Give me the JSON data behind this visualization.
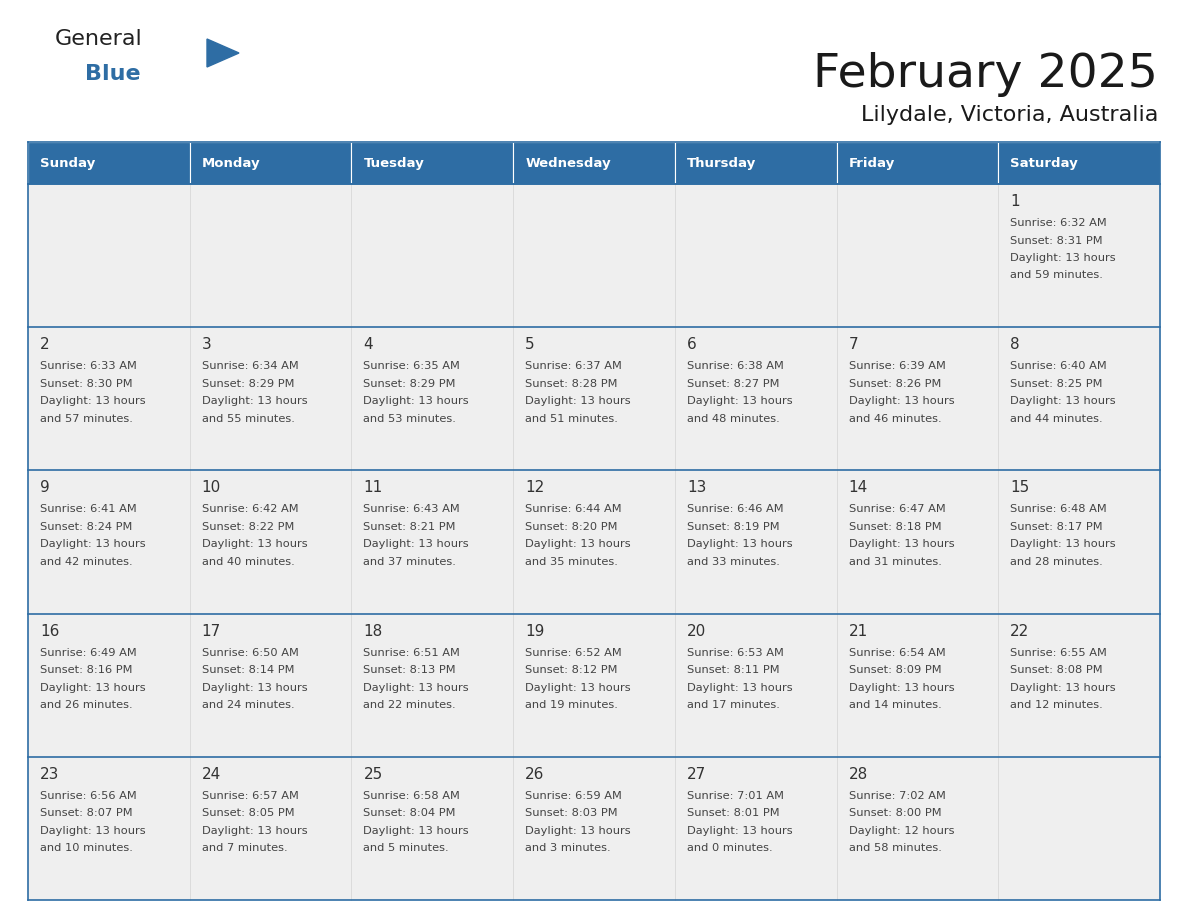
{
  "title": "February 2025",
  "subtitle": "Lilydale, Victoria, Australia",
  "days_of_week": [
    "Sunday",
    "Monday",
    "Tuesday",
    "Wednesday",
    "Thursday",
    "Friday",
    "Saturday"
  ],
  "header_bg": "#2e6da4",
  "header_text_color": "#ffffff",
  "cell_bg": "#efefef",
  "border_color": "#2e6da4",
  "day_num_color": "#333333",
  "text_color": "#444444",
  "title_color": "#1a1a1a",
  "calendar_data": [
    [
      null,
      null,
      null,
      null,
      null,
      null,
      {
        "day": 1,
        "sunrise": "6:32 AM",
        "sunset": "8:31 PM",
        "daylight": "13 hours and 59 minutes."
      }
    ],
    [
      {
        "day": 2,
        "sunrise": "6:33 AM",
        "sunset": "8:30 PM",
        "daylight": "13 hours and 57 minutes."
      },
      {
        "day": 3,
        "sunrise": "6:34 AM",
        "sunset": "8:29 PM",
        "daylight": "13 hours and 55 minutes."
      },
      {
        "day": 4,
        "sunrise": "6:35 AM",
        "sunset": "8:29 PM",
        "daylight": "13 hours and 53 minutes."
      },
      {
        "day": 5,
        "sunrise": "6:37 AM",
        "sunset": "8:28 PM",
        "daylight": "13 hours and 51 minutes."
      },
      {
        "day": 6,
        "sunrise": "6:38 AM",
        "sunset": "8:27 PM",
        "daylight": "13 hours and 48 minutes."
      },
      {
        "day": 7,
        "sunrise": "6:39 AM",
        "sunset": "8:26 PM",
        "daylight": "13 hours and 46 minutes."
      },
      {
        "day": 8,
        "sunrise": "6:40 AM",
        "sunset": "8:25 PM",
        "daylight": "13 hours and 44 minutes."
      }
    ],
    [
      {
        "day": 9,
        "sunrise": "6:41 AM",
        "sunset": "8:24 PM",
        "daylight": "13 hours and 42 minutes."
      },
      {
        "day": 10,
        "sunrise": "6:42 AM",
        "sunset": "8:22 PM",
        "daylight": "13 hours and 40 minutes."
      },
      {
        "day": 11,
        "sunrise": "6:43 AM",
        "sunset": "8:21 PM",
        "daylight": "13 hours and 37 minutes."
      },
      {
        "day": 12,
        "sunrise": "6:44 AM",
        "sunset": "8:20 PM",
        "daylight": "13 hours and 35 minutes."
      },
      {
        "day": 13,
        "sunrise": "6:46 AM",
        "sunset": "8:19 PM",
        "daylight": "13 hours and 33 minutes."
      },
      {
        "day": 14,
        "sunrise": "6:47 AM",
        "sunset": "8:18 PM",
        "daylight": "13 hours and 31 minutes."
      },
      {
        "day": 15,
        "sunrise": "6:48 AM",
        "sunset": "8:17 PM",
        "daylight": "13 hours and 28 minutes."
      }
    ],
    [
      {
        "day": 16,
        "sunrise": "6:49 AM",
        "sunset": "8:16 PM",
        "daylight": "13 hours and 26 minutes."
      },
      {
        "day": 17,
        "sunrise": "6:50 AM",
        "sunset": "8:14 PM",
        "daylight": "13 hours and 24 minutes."
      },
      {
        "day": 18,
        "sunrise": "6:51 AM",
        "sunset": "8:13 PM",
        "daylight": "13 hours and 22 minutes."
      },
      {
        "day": 19,
        "sunrise": "6:52 AM",
        "sunset": "8:12 PM",
        "daylight": "13 hours and 19 minutes."
      },
      {
        "day": 20,
        "sunrise": "6:53 AM",
        "sunset": "8:11 PM",
        "daylight": "13 hours and 17 minutes."
      },
      {
        "day": 21,
        "sunrise": "6:54 AM",
        "sunset": "8:09 PM",
        "daylight": "13 hours and 14 minutes."
      },
      {
        "day": 22,
        "sunrise": "6:55 AM",
        "sunset": "8:08 PM",
        "daylight": "13 hours and 12 minutes."
      }
    ],
    [
      {
        "day": 23,
        "sunrise": "6:56 AM",
        "sunset": "8:07 PM",
        "daylight": "13 hours and 10 minutes."
      },
      {
        "day": 24,
        "sunrise": "6:57 AM",
        "sunset": "8:05 PM",
        "daylight": "13 hours and 7 minutes."
      },
      {
        "day": 25,
        "sunrise": "6:58 AM",
        "sunset": "8:04 PM",
        "daylight": "13 hours and 5 minutes."
      },
      {
        "day": 26,
        "sunrise": "6:59 AM",
        "sunset": "8:03 PM",
        "daylight": "13 hours and 3 minutes."
      },
      {
        "day": 27,
        "sunrise": "7:01 AM",
        "sunset": "8:01 PM",
        "daylight": "13 hours and 0 minutes."
      },
      {
        "day": 28,
        "sunrise": "7:02 AM",
        "sunset": "8:00 PM",
        "daylight": "12 hours and 58 minutes."
      },
      null
    ]
  ],
  "logo_general_color": "#222222",
  "logo_blue_color": "#2e6da4",
  "fig_width": 11.88,
  "fig_height": 9.18
}
